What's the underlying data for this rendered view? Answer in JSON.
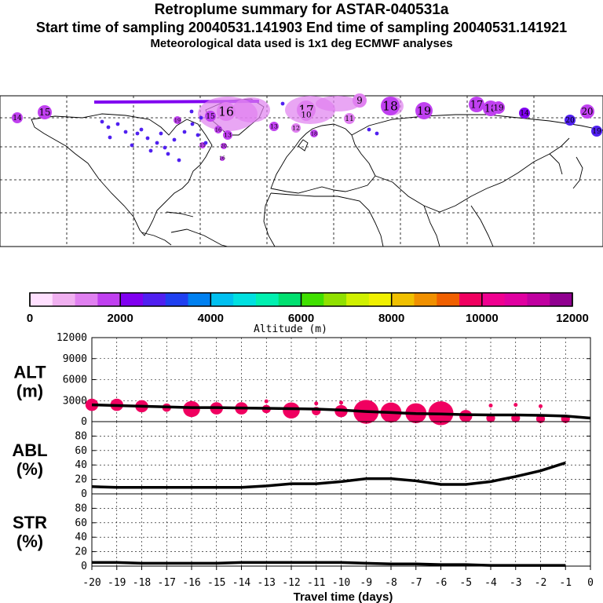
{
  "header": {
    "title": "Retroplume summary for ASTAR-040531a",
    "sampling": "Start time of sampling 20040531.141903     End time of sampling 20040531.141921",
    "meteo": "Meteorological data used is 1x1 deg ECMWF analyses"
  },
  "colorbar": {
    "label": "Altitude (m)",
    "ticks": [
      "0",
      "2000",
      "4000",
      "6000",
      "8000",
      "10000",
      "12000"
    ],
    "colors": [
      "#ffe0ff",
      "#f0b0f0",
      "#e080f0",
      "#c040f0",
      "#8000f0",
      "#5020f0",
      "#2040f0",
      "#0080f0",
      "#00c0f0",
      "#00e0e0",
      "#00f0b0",
      "#00e070",
      "#40e000",
      "#90e000",
      "#d0f000",
      "#f0f000",
      "#f0c000",
      "#f09000",
      "#f06000",
      "#f00060",
      "#f00090",
      "#e000a0",
      "#c000a0",
      "#900090"
    ]
  },
  "map": {
    "markers": [
      {
        "label": "14",
        "color": "#c040f0"
      },
      {
        "label": "15",
        "color": "#c040f0"
      },
      {
        "label": "16",
        "color": "#e080f0"
      },
      {
        "label": "17",
        "color": "#e080f0"
      },
      {
        "label": "18",
        "color": "#c040f0"
      },
      {
        "label": "19",
        "color": "#c040f0"
      },
      {
        "label": "9",
        "color": "#e080f0"
      },
      {
        "label": "10",
        "color": "#e080f0"
      },
      {
        "label": "11",
        "color": "#e080f0"
      },
      {
        "label": "12",
        "color": "#e080f0"
      },
      {
        "label": "13",
        "color": "#c040f0"
      },
      {
        "label": "17",
        "color": "#c040f0"
      },
      {
        "label": "18",
        "color": "#c040f0"
      },
      {
        "label": "19",
        "color": "#c040f0"
      },
      {
        "label": "20",
        "color": "#c040f0"
      },
      {
        "label": "14",
        "color": "#8000f0"
      },
      {
        "label": "20",
        "color": "#5020f0"
      },
      {
        "label": "19",
        "color": "#5020f0"
      },
      {
        "label": "15",
        "color": "#c040f0"
      },
      {
        "label": "16",
        "color": "#c040f0"
      },
      {
        "label": "13",
        "color": "#c040f0"
      },
      {
        "label": "20",
        "color": "#c040f0"
      },
      {
        "label": "15",
        "color": "#c040f0"
      },
      {
        "label": "16",
        "color": "#c040f0"
      },
      {
        "label": "19",
        "color": "#c040f0"
      },
      {
        "label": "18",
        "color": "#c040f0"
      }
    ]
  },
  "chart_data": {
    "type": "line",
    "xlabel": "Travel time (days)",
    "x": [
      -20,
      -19,
      -18,
      -17,
      -16,
      -15,
      -14,
      -13,
      -12,
      -11,
      -10,
      -9,
      -8,
      -7,
      -6,
      -5,
      -4,
      -3,
      -2,
      -1
    ],
    "xticks": [
      "-20",
      "-19",
      "-18",
      "-17",
      "-16",
      "-15",
      "-14",
      "-13",
      "-12",
      "-11",
      "-10",
      "-9",
      "-8",
      "-7",
      "-6",
      "-5",
      "-4",
      "-3",
      "-2",
      "-1",
      "0"
    ],
    "xlim": [
      -20,
      0
    ],
    "panels": [
      {
        "name": "ALT",
        "ylabel": "ALT",
        "yunit": "(m)",
        "ylim": [
          0,
          12000
        ],
        "yticks": [
          "0",
          "3000",
          "6000",
          "9000",
          "12000"
        ],
        "line": [
          2400,
          2300,
          2200,
          2100,
          2000,
          2000,
          1950,
          1900,
          1850,
          1800,
          1650,
          1450,
          1300,
          1150,
          1100,
          1000,
          950,
          950,
          900,
          800,
          500
        ],
        "line_x": [
          -20,
          -19,
          -18,
          -17,
          -16,
          -15,
          -14,
          -13,
          -12,
          -11,
          -10,
          -9,
          -8,
          -7,
          -6,
          -5,
          -4,
          -3,
          -2,
          -1,
          0
        ],
        "bubble_alt": [
          2400,
          2400,
          2200,
          2000,
          1800,
          1900,
          1900,
          1800,
          1600,
          1500,
          1500,
          1400,
          1300,
          1200,
          1200,
          800,
          500,
          500,
          400,
          400
        ],
        "bubble_spread": [
          2,
          2,
          2,
          1,
          3,
          2,
          2,
          1,
          3,
          1,
          2,
          5,
          4,
          4,
          5,
          2,
          1,
          1,
          1,
          1
        ],
        "bubble_color": "#f00060",
        "hi_alt": [
          0,
          0,
          0,
          0,
          0,
          0,
          0,
          2900,
          0,
          2600,
          2700,
          0,
          0,
          0,
          0,
          0,
          2300,
          2400,
          2200,
          0
        ]
      },
      {
        "name": "ABL",
        "ylabel": "ABL",
        "yunit": "(%)",
        "ylim": [
          0,
          100
        ],
        "yticks": [
          "0",
          "20",
          "40",
          "60",
          "80"
        ],
        "line": [
          10,
          9,
          9,
          9,
          9,
          9,
          9,
          11,
          14,
          14,
          17,
          21,
          21,
          18,
          13,
          13,
          17,
          24,
          32,
          43
        ],
        "line_x": [
          -20,
          -19,
          -18,
          -17,
          -16,
          -15,
          -14,
          -13,
          -12,
          -11,
          -10,
          -9,
          -8,
          -7,
          -6,
          -5,
          -4,
          -3,
          -2,
          -1
        ]
      },
      {
        "name": "STR",
        "ylabel": "STR",
        "yunit": "(%)",
        "ylim": [
          0,
          100
        ],
        "yticks": [
          "0",
          "20",
          "40",
          "60",
          "80"
        ],
        "line": [
          5,
          5,
          4,
          4,
          4,
          4,
          5,
          5,
          5,
          5,
          5,
          4,
          3,
          3,
          2,
          2,
          1,
          1,
          1,
          1
        ],
        "line_x": [
          -20,
          -19,
          -18,
          -17,
          -16,
          -15,
          -14,
          -13,
          -12,
          -11,
          -10,
          -9,
          -8,
          -7,
          -6,
          -5,
          -4,
          -3,
          -2,
          -1
        ]
      }
    ]
  }
}
